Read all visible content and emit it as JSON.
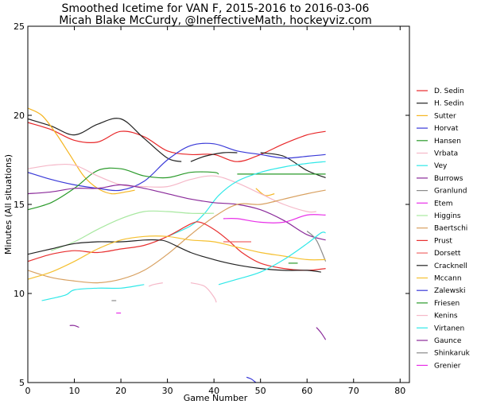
{
  "chart_data": {
    "type": "line",
    "title": "Smoothed Icetime for VAN F, 2015-2016 to 2016-03-06",
    "subtitle": "Micah Blake McCurdy, @IneffectiveMath, hockeyviz.com",
    "xlabel": "Game Number",
    "ylabel": "Minutes (All situations)",
    "xlim": [
      0,
      82
    ],
    "ylim": [
      5,
      25
    ],
    "xticks": [
      0,
      10,
      20,
      30,
      40,
      50,
      60,
      70,
      80
    ],
    "yticks": [
      5,
      10,
      15,
      20,
      25
    ],
    "legend_position": "right",
    "grid": false,
    "series": [
      {
        "name": "D. Sedin",
        "color": "#e8282a",
        "segments": [
          [
            [
              0,
              19.6
            ],
            [
              5,
              19.2
            ],
            [
              10,
              18.6
            ],
            [
              15,
              18.5
            ],
            [
              20,
              19.1
            ],
            [
              25,
              18.8
            ],
            [
              30,
              18.0
            ],
            [
              35,
              17.8
            ],
            [
              40,
              17.8
            ],
            [
              45,
              17.4
            ],
            [
              50,
              17.8
            ],
            [
              55,
              18.4
            ],
            [
              60,
              18.9
            ],
            [
              64,
              19.1
            ]
          ]
        ]
      },
      {
        "name": "H. Sedin",
        "color": "#222222",
        "segments": [
          [
            [
              0,
              19.8
            ],
            [
              5,
              19.4
            ],
            [
              10,
              18.9
            ],
            [
              15,
              19.5
            ],
            [
              20,
              19.8
            ],
            [
              25,
              18.7
            ],
            [
              30,
              17.6
            ],
            [
              33,
              17.4
            ]
          ],
          [
            [
              35,
              17.4
            ],
            [
              38,
              17.7
            ],
            [
              42,
              17.9
            ],
            [
              45,
              17.9
            ]
          ],
          [
            [
              50,
              17.9
            ],
            [
              55,
              17.7
            ],
            [
              60,
              16.9
            ],
            [
              64,
              16.5
            ]
          ]
        ]
      },
      {
        "name": "Sutter",
        "color": "#f5b520",
        "segments": [
          [
            [
              0,
              20.4
            ],
            [
              3,
              20.0
            ],
            [
              6,
              19.0
            ],
            [
              9,
              17.8
            ],
            [
              12,
              16.6
            ],
            [
              15,
              15.9
            ],
            [
              18,
              15.6
            ],
            [
              21,
              15.7
            ],
            [
              23,
              15.8
            ]
          ],
          [
            [
              49,
              15.9
            ],
            [
              51,
              15.5
            ],
            [
              53,
              15.6
            ]
          ]
        ]
      },
      {
        "name": "Horvat",
        "color": "#3a3ad8",
        "segments": [
          [
            [
              0,
              16.8
            ],
            [
              5,
              16.4
            ],
            [
              10,
              16.1
            ],
            [
              15,
              15.9
            ],
            [
              20,
              15.8
            ],
            [
              25,
              16.3
            ],
            [
              30,
              17.5
            ],
            [
              35,
              18.3
            ],
            [
              40,
              18.4
            ],
            [
              45,
              18.0
            ],
            [
              50,
              17.8
            ],
            [
              55,
              17.6
            ],
            [
              60,
              17.7
            ],
            [
              64,
              17.8
            ]
          ]
        ]
      },
      {
        "name": "Hansen",
        "color": "#2a9a2a",
        "segments": [
          [
            [
              0,
              14.7
            ],
            [
              5,
              15.1
            ],
            [
              10,
              15.9
            ],
            [
              15,
              16.9
            ],
            [
              20,
              17.0
            ],
            [
              25,
              16.6
            ],
            [
              30,
              16.5
            ],
            [
              35,
              16.8
            ],
            [
              40,
              16.8
            ],
            [
              41,
              16.7
            ]
          ],
          [
            [
              45,
              16.7
            ],
            [
              55,
              16.7
            ],
            [
              64,
              16.7
            ]
          ]
        ]
      },
      {
        "name": "Vrbata",
        "color": "#f5b8c8",
        "segments": [
          [
            [
              0,
              17.0
            ],
            [
              5,
              17.2
            ],
            [
              10,
              17.2
            ],
            [
              15,
              16.6
            ],
            [
              20,
              16.1
            ],
            [
              25,
              16.0
            ],
            [
              30,
              16.0
            ],
            [
              35,
              16.4
            ],
            [
              40,
              16.6
            ],
            [
              45,
              16.2
            ],
            [
              50,
              15.6
            ],
            [
              55,
              15.0
            ],
            [
              60,
              14.6
            ],
            [
              62,
              14.6
            ]
          ]
        ]
      },
      {
        "name": "Vey",
        "color": "#30e8e8",
        "segments": [
          [
            [
              30,
              13.2
            ],
            [
              35,
              13.8
            ],
            [
              38,
              14.5
            ],
            [
              41,
              15.5
            ],
            [
              45,
              16.3
            ],
            [
              50,
              16.8
            ],
            [
              55,
              17.1
            ],
            [
              60,
              17.3
            ],
            [
              64,
              17.4
            ]
          ]
        ]
      },
      {
        "name": "Burrows",
        "color": "#8a2a9a",
        "segments": [
          [
            [
              0,
              15.6
            ],
            [
              5,
              15.7
            ],
            [
              10,
              15.9
            ],
            [
              15,
              15.9
            ],
            [
              20,
              16.1
            ],
            [
              25,
              15.9
            ],
            [
              30,
              15.6
            ],
            [
              35,
              15.3
            ],
            [
              40,
              15.1
            ],
            [
              45,
              15.0
            ],
            [
              50,
              14.7
            ],
            [
              55,
              14.1
            ],
            [
              60,
              13.3
            ],
            [
              64,
              13.0
            ]
          ]
        ]
      },
      {
        "name": "Granlund",
        "color": "#8a8a8a",
        "segments": [
          [
            [
              60,
              13.5
            ],
            [
              62,
              13.0
            ],
            [
              64,
              11.8
            ]
          ]
        ]
      },
      {
        "name": "Etem",
        "color": "#e830e8",
        "segments": [
          [
            [
              42,
              14.2
            ],
            [
              45,
              14.2
            ],
            [
              50,
              14.0
            ],
            [
              55,
              14.0
            ],
            [
              60,
              14.4
            ],
            [
              64,
              14.4
            ]
          ]
        ]
      },
      {
        "name": "Higgins",
        "color": "#a8e8a0",
        "segments": [
          [
            [
              5,
              12.4
            ],
            [
              10,
              12.9
            ],
            [
              15,
              13.6
            ],
            [
              20,
              14.2
            ],
            [
              25,
              14.6
            ],
            [
              30,
              14.6
            ],
            [
              35,
              14.5
            ],
            [
              40,
              14.5
            ]
          ]
        ]
      },
      {
        "name": "Baertschi",
        "color": "#d8a060",
        "segments": [
          [
            [
              0,
              11.3
            ],
            [
              5,
              10.9
            ],
            [
              10,
              10.7
            ],
            [
              15,
              10.6
            ],
            [
              20,
              10.8
            ],
            [
              25,
              11.3
            ],
            [
              30,
              12.2
            ],
            [
              35,
              13.3
            ],
            [
              40,
              14.3
            ],
            [
              45,
              15.0
            ],
            [
              50,
              15.0
            ],
            [
              55,
              15.3
            ],
            [
              60,
              15.6
            ],
            [
              64,
              15.8
            ]
          ]
        ]
      },
      {
        "name": "Prust",
        "color": "#e83030",
        "segments": [
          [
            [
              0,
              11.8
            ],
            [
              5,
              12.2
            ],
            [
              10,
              12.4
            ],
            [
              15,
              12.3
            ],
            [
              20,
              12.5
            ],
            [
              25,
              12.7
            ],
            [
              30,
              13.2
            ],
            [
              35,
              13.9
            ],
            [
              37,
              14.0
            ],
            [
              40,
              13.6
            ],
            [
              43,
              13.0
            ],
            [
              46,
              12.3
            ],
            [
              50,
              11.7
            ],
            [
              55,
              11.4
            ],
            [
              60,
              11.3
            ],
            [
              64,
              11.4
            ]
          ]
        ]
      },
      {
        "name": "Dorsett",
        "color": "#f06868",
        "segments": [
          [
            [
              42,
              12.9
            ],
            [
              48,
              12.9
            ]
          ]
        ]
      },
      {
        "name": "Cracknell",
        "color": "#222222",
        "segments": [
          [
            [
              0,
              12.2
            ],
            [
              5,
              12.5
            ],
            [
              10,
              12.8
            ],
            [
              15,
              12.9
            ],
            [
              20,
              12.9
            ],
            [
              25,
              13.0
            ],
            [
              28,
              13.0
            ],
            [
              30,
              12.9
            ],
            [
              35,
              12.3
            ],
            [
              40,
              11.9
            ],
            [
              45,
              11.6
            ],
            [
              50,
              11.4
            ],
            [
              55,
              11.3
            ],
            [
              60,
              11.3
            ],
            [
              63,
              11.2
            ]
          ]
        ]
      },
      {
        "name": "Mccann",
        "color": "#f5c030",
        "segments": [
          [
            [
              0,
              10.8
            ],
            [
              5,
              11.2
            ],
            [
              10,
              11.8
            ],
            [
              15,
              12.5
            ],
            [
              20,
              13.0
            ],
            [
              25,
              13.2
            ],
            [
              30,
              13.2
            ],
            [
              35,
              13.0
            ],
            [
              40,
              12.9
            ],
            [
              45,
              12.6
            ],
            [
              50,
              12.3
            ],
            [
              55,
              12.1
            ],
            [
              60,
              11.9
            ],
            [
              64,
              11.9
            ]
          ]
        ]
      },
      {
        "name": "Zalewski",
        "color": "#3a3ad8",
        "segments": [
          [
            [
              47,
              5.3
            ],
            [
              48,
              5.2
            ],
            [
              49,
              5.0
            ]
          ]
        ]
      },
      {
        "name": "Friesen",
        "color": "#2a9a2a",
        "segments": [
          [
            [
              56,
              11.7
            ],
            [
              58,
              11.7
            ]
          ]
        ]
      },
      {
        "name": "Kenins",
        "color": "#f5b8c8",
        "segments": [
          [
            [
              26,
              10.4
            ],
            [
              27,
              10.5
            ],
            [
              29,
              10.6
            ]
          ],
          [
            [
              35,
              10.6
            ],
            [
              38,
              10.4
            ],
            [
              40,
              9.8
            ],
            [
              40.5,
              9.5
            ]
          ]
        ]
      },
      {
        "name": "Virtanen",
        "color": "#30e8e8",
        "segments": [
          [
            [
              3,
              9.6
            ],
            [
              8,
              9.9
            ],
            [
              10,
              10.2
            ],
            [
              15,
              10.3
            ],
            [
              20,
              10.3
            ],
            [
              25,
              10.5
            ]
          ],
          [
            [
              41,
              10.5
            ],
            [
              45,
              10.8
            ],
            [
              50,
              11.2
            ],
            [
              55,
              11.9
            ],
            [
              60,
              12.8
            ],
            [
              63,
              13.4
            ],
            [
              64,
              13.4
            ]
          ]
        ]
      },
      {
        "name": "Gaunce",
        "color": "#8a2a9a",
        "segments": [
          [
            [
              9,
              8.2
            ],
            [
              10,
              8.2
            ],
            [
              11,
              8.1
            ]
          ],
          [
            [
              62,
              8.1
            ],
            [
              63,
              7.8
            ],
            [
              64,
              7.4
            ]
          ]
        ]
      },
      {
        "name": "Shinkaruk",
        "color": "#8a8a8a",
        "segments": [
          [
            [
              18,
              9.6
            ],
            [
              19,
              9.6
            ]
          ]
        ]
      },
      {
        "name": "Grenier",
        "color": "#e830e8",
        "segments": [
          [
            [
              19,
              8.9
            ],
            [
              20,
              8.9
            ]
          ]
        ]
      }
    ]
  }
}
